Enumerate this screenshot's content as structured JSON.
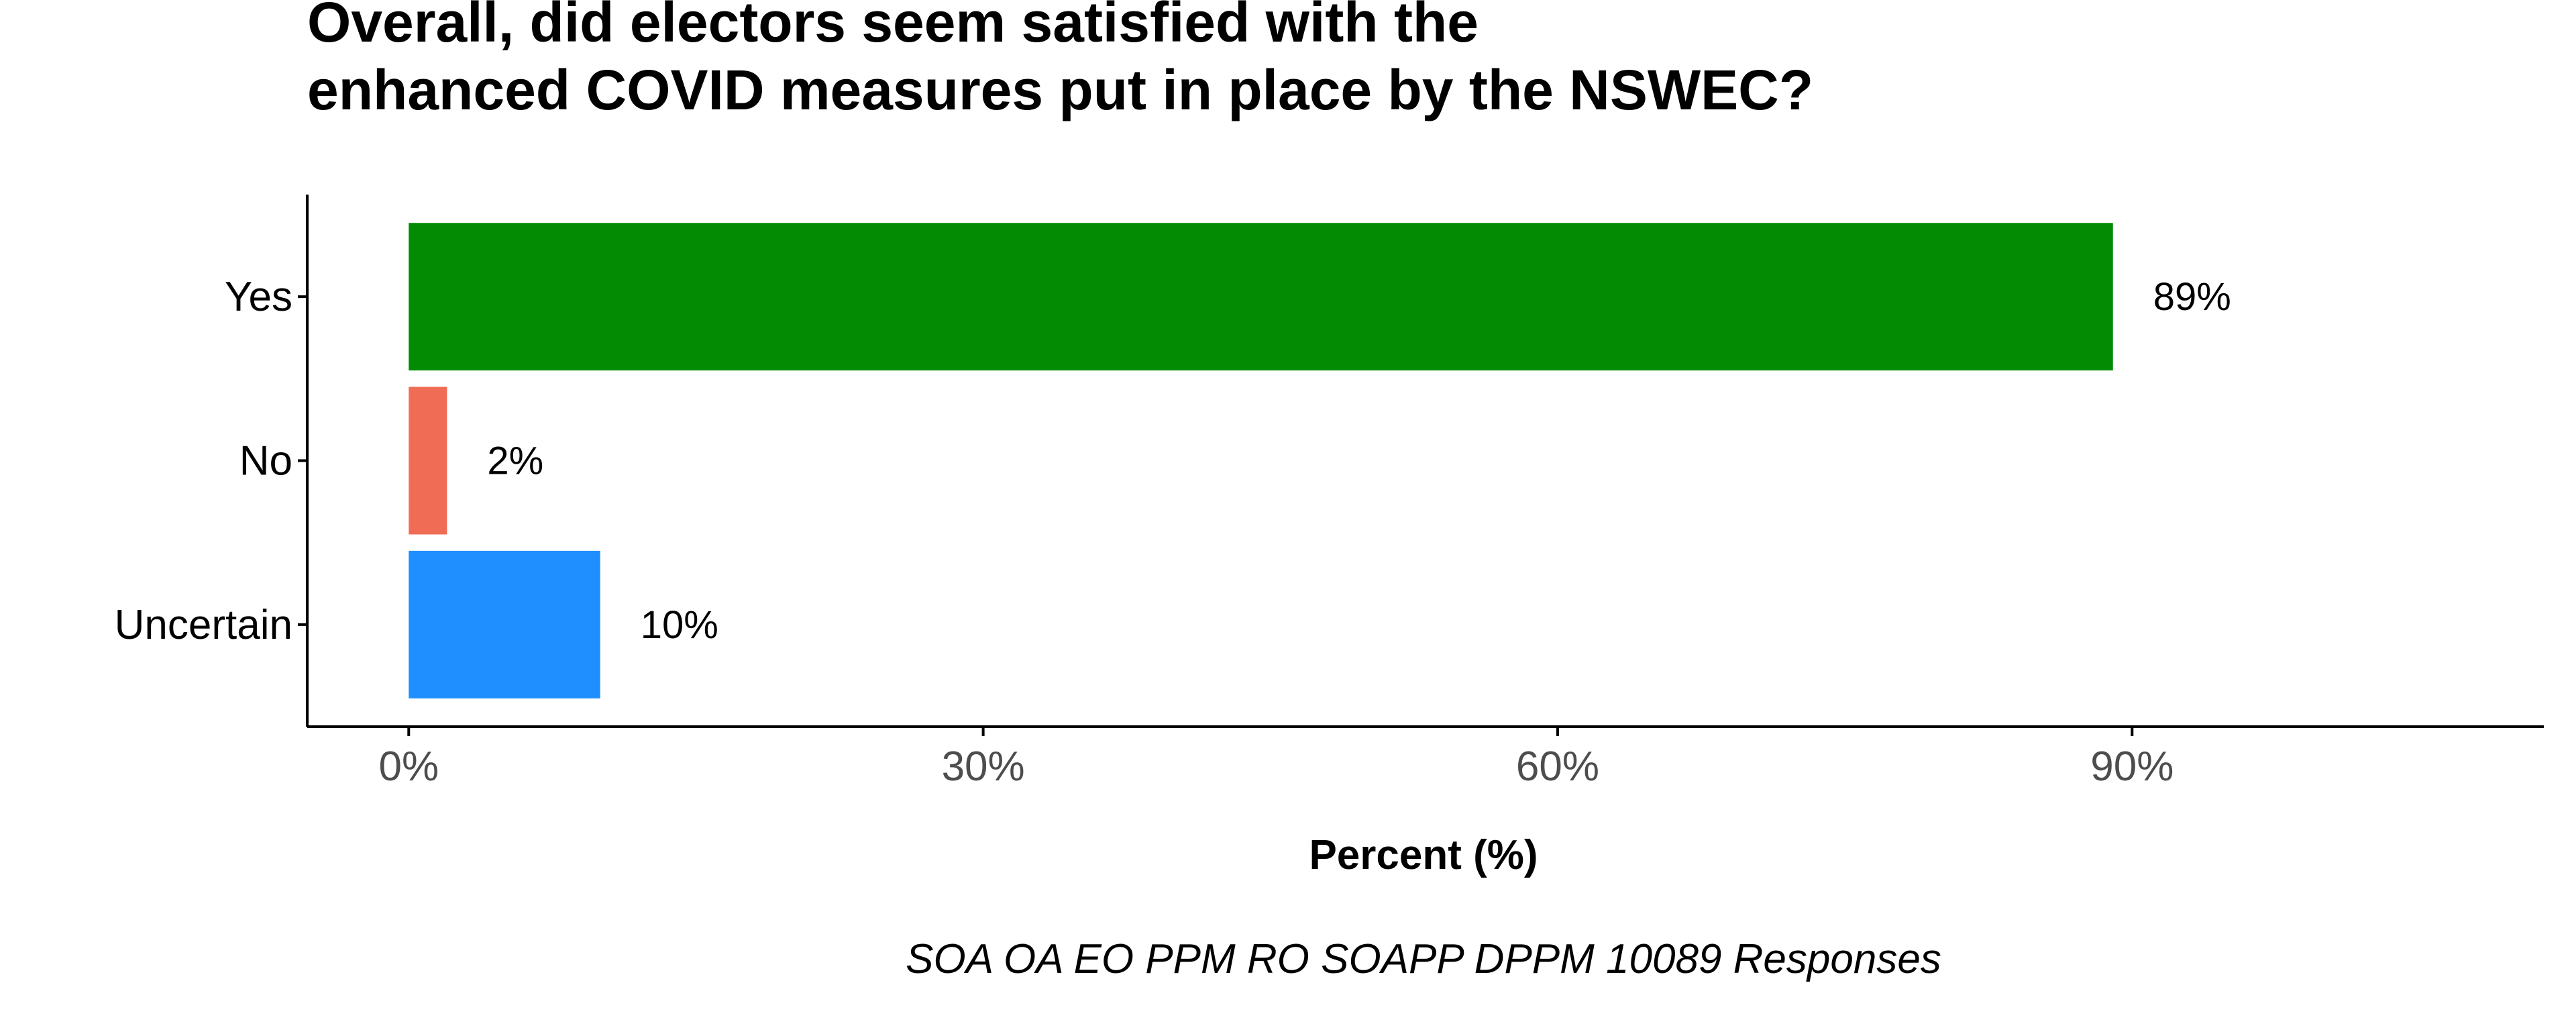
{
  "chart_data": {
    "type": "bar",
    "orientation": "horizontal",
    "title": "Overall, did electors seem satisfied with the enhanced COVID measures put in place by the NSWEC?",
    "title_lines": [
      "Overall, did electors seem satisfied with the",
      "enhanced COVID measures put in place by the NSWEC?"
    ],
    "categories": [
      "Yes",
      "No",
      "Uncertain"
    ],
    "values": [
      89,
      2,
      10
    ],
    "value_labels": [
      "89%",
      "2%",
      "10%"
    ],
    "colors": [
      "#038c03",
      "#f06c55",
      "#1f8fff"
    ],
    "xlabel": "Percent (%)",
    "ylabel": "",
    "xlim": [
      -5.3,
      111.5
    ],
    "x_ticks": [
      0,
      30,
      60,
      90
    ],
    "x_tick_labels": [
      "0%",
      "30%",
      "60%",
      "90%"
    ],
    "grid": false,
    "legend": "none",
    "caption": "SOA OA EO PPM RO SOAPP DPPM 10089 Responses"
  }
}
